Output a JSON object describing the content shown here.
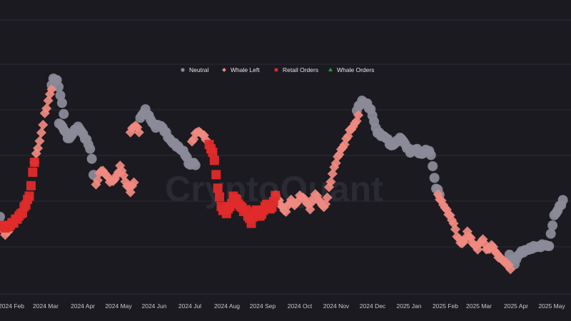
{
  "watermark": "CryptoQuant",
  "chart_data": {
    "type": "scatter",
    "title": "",
    "xlabel": "",
    "ylabel": "",
    "x_ticks": [
      "2024 Feb",
      "2024 Mar",
      "2024 Apr",
      "2024 May",
      "2024 Jun",
      "2024 Jul",
      "2024 Aug",
      "2024 Sep",
      "2024 Oct",
      "2024 Nov",
      "2024 Dec",
      "2025 Jan",
      "2025 Feb",
      "2025 Mar",
      "2025 Apr",
      "2025 May"
    ],
    "y_axis_labels_visible": false,
    "grid": true,
    "legend_position": "top-center",
    "legend": [
      {
        "name": "Neutral",
        "color": "#8a8a98",
        "marker": "circle"
      },
      {
        "name": "Whale Left",
        "color": "#f08a80",
        "marker": "diamond"
      },
      {
        "name": "Retail Orders",
        "color": "#e02b2b",
        "marker": "square"
      },
      {
        "name": "Whale Orders",
        "color": "#2e9e3e",
        "marker": "triangle"
      }
    ],
    "y_range": [
      0,
      100
    ],
    "series": [
      {
        "name": "Retail Orders",
        "segments": [
          {
            "start": 0,
            "end": 14,
            "from": 24,
            "to": 56,
            "points": [
              [
                0,
                26
              ],
              [
                3,
                25
              ],
              [
                6,
                28
              ],
              [
                9,
                32
              ],
              [
                12,
                40
              ],
              [
                14,
                56
              ]
            ]
          },
          {
            "start": 85,
            "end": 99,
            "from": 64,
            "to": 33,
            "points": [
              [
                85,
                64
              ],
              [
                87,
                58
              ],
              [
                88,
                47
              ],
              [
                90,
                34
              ],
              [
                92,
                32
              ],
              [
                94,
                36
              ],
              [
                95,
                40
              ],
              [
                97,
                36
              ],
              [
                99,
                33
              ]
            ]
          },
          {
            "start": 100,
            "end": 112,
            "from": 32,
            "to": 40,
            "points": [
              [
                100,
                33
              ],
              [
                102,
                27
              ],
              [
                104,
                34
              ],
              [
                106,
                30
              ],
              [
                108,
                36
              ],
              [
                110,
                33
              ],
              [
                112,
                40
              ]
            ]
          }
        ]
      },
      {
        "name": "Whale Left",
        "segments": [
          {
            "start": 0,
            "end": 4,
            "from": 26,
            "to": 22,
            "points": [
              [
                0,
                26
              ],
              [
                2,
                22
              ],
              [
                4,
                24
              ]
            ]
          },
          {
            "start": 14,
            "end": 22,
            "from": 56,
            "to": 90,
            "points": [
              [
                14,
                56
              ],
              [
                16,
                65
              ],
              [
                17,
                70
              ],
              [
                18,
                77
              ],
              [
                20,
                86
              ],
              [
                21,
                90
              ]
            ]
          },
          {
            "start": 39,
            "end": 55,
            "from": 50,
            "to": 44,
            "points": [
              [
                39,
                45
              ],
              [
                41,
                52
              ],
              [
                43,
                50
              ],
              [
                45,
                46
              ],
              [
                47,
                48
              ],
              [
                49,
                54
              ],
              [
                51,
                46
              ],
              [
                53,
                42
              ],
              [
                55,
                48
              ]
            ]
          },
          {
            "start": 53,
            "end": 57,
            "from": 68,
            "to": 74,
            "points": [
              [
                53,
                70
              ],
              [
                55,
                73
              ],
              [
                57,
                69
              ]
            ]
          },
          {
            "start": 78,
            "end": 84,
            "from": 66,
            "to": 62,
            "points": [
              [
                78,
                65
              ],
              [
                80,
                70
              ],
              [
                82,
                69
              ],
              [
                84,
                66
              ]
            ]
          },
          {
            "start": 112,
            "end": 135,
            "from": 36,
            "to": 76,
            "points": [
              [
                112,
                40
              ],
              [
                114,
                36
              ],
              [
                116,
                32
              ],
              [
                118,
                38
              ],
              [
                120,
                35
              ],
              [
                122,
                40
              ],
              [
                124,
                38
              ],
              [
                126,
                34
              ],
              [
                128,
                41
              ],
              [
                130,
                37
              ],
              [
                132,
                34
              ],
              [
                134,
                45
              ],
              [
                136,
                54
              ],
              [
                138,
                60
              ],
              [
                140,
                64
              ],
              [
                142,
                70
              ],
              [
                144,
                73
              ],
              [
                146,
                78
              ]
            ]
          },
          {
            "start": 178,
            "end": 208,
            "from": 40,
            "to": 10,
            "points": [
              [
                178,
                40
              ],
              [
                180,
                36
              ],
              [
                182,
                32
              ],
              [
                184,
                28
              ],
              [
                186,
                20
              ],
              [
                188,
                17
              ],
              [
                190,
                23
              ],
              [
                192,
                18
              ],
              [
                194,
                15
              ],
              [
                196,
                20
              ],
              [
                198,
                14
              ],
              [
                200,
                17
              ],
              [
                202,
                12
              ],
              [
                204,
                10
              ],
              [
                206,
                8
              ],
              [
                208,
                5
              ]
            ]
          }
        ]
      },
      {
        "name": "Neutral",
        "segments": [
          {
            "start": 0,
            "end": 4,
            "from": 28,
            "to": 30,
            "points": [
              [
                0,
                30
              ]
            ]
          },
          {
            "start": 21,
            "end": 26,
            "from": 90,
            "to": 78,
            "points": [
              [
                21,
                92
              ],
              [
                22,
                95
              ],
              [
                23,
                94
              ],
              [
                24,
                90
              ],
              [
                25,
                84
              ],
              [
                26,
                78
              ]
            ]
          },
          {
            "start": 24,
            "end": 38,
            "from": 74,
            "to": 50,
            "points": [
              [
                24,
                74
              ],
              [
                26,
                71
              ],
              [
                28,
                66
              ],
              [
                30,
                70
              ],
              [
                32,
                72
              ],
              [
                34,
                68
              ],
              [
                36,
                64
              ],
              [
                37,
                60
              ],
              [
                38,
                50
              ]
            ]
          },
          {
            "start": 57,
            "end": 80,
            "from": 74,
            "to": 54,
            "points": [
              [
                57,
                76
              ],
              [
                59,
                80
              ],
              [
                61,
                76
              ],
              [
                63,
                72
              ],
              [
                65,
                73
              ],
              [
                67,
                70
              ],
              [
                69,
                66
              ],
              [
                71,
                64
              ],
              [
                73,
                62
              ],
              [
                75,
                60
              ],
              [
                77,
                54
              ],
              [
                79,
                56
              ],
              [
                80,
                50
              ]
            ]
          },
          {
            "start": 145,
            "end": 176,
            "from": 80,
            "to": 64,
            "points": [
              [
                145,
                80
              ],
              [
                147,
                84
              ],
              [
                149,
                83
              ],
              [
                151,
                79
              ],
              [
                153,
                70
              ],
              [
                155,
                68
              ],
              [
                157,
                67
              ],
              [
                159,
                63
              ],
              [
                161,
                65
              ],
              [
                163,
                67
              ],
              [
                165,
                63
              ],
              [
                167,
                60
              ],
              [
                169,
                62
              ],
              [
                171,
                59
              ],
              [
                173,
                61
              ],
              [
                175,
                60
              ],
              [
                177,
                44
              ],
              [
                179,
                40
              ]
            ]
          },
          {
            "start": 207,
            "end": 230,
            "from": 12,
            "to": 24,
            "points": [
              [
                207,
                12
              ],
              [
                209,
                8
              ],
              [
                211,
                13
              ],
              [
                213,
                14
              ],
              [
                215,
                15
              ],
              [
                217,
                16
              ],
              [
                219,
                16
              ],
              [
                221,
                17
              ],
              [
                223,
                16
              ],
              [
                225,
                30
              ],
              [
                227,
                34
              ],
              [
                229,
                38
              ]
            ]
          }
        ]
      }
    ]
  }
}
